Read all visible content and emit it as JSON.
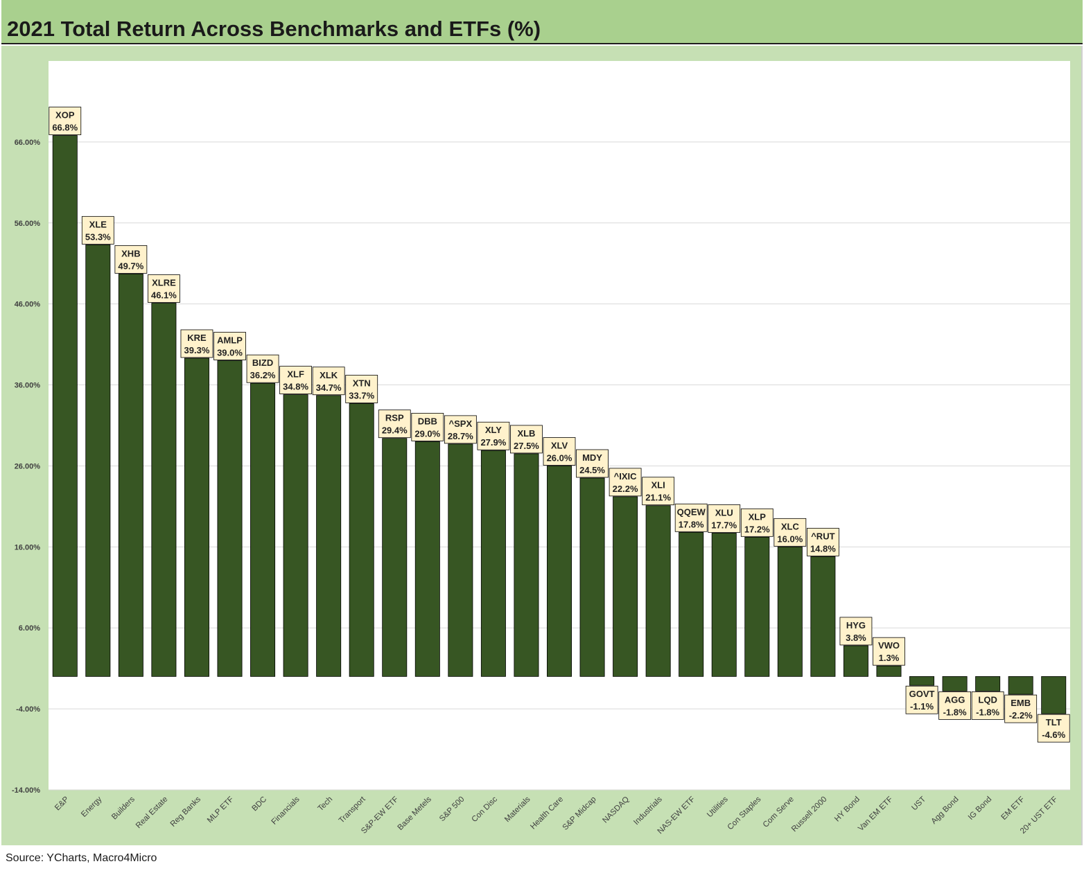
{
  "header": {
    "title": "2021 Total Return Across Benchmarks and ETFs (%)"
  },
  "footer": {
    "source": "Source: YCharts, Macro4Micro"
  },
  "colors": {
    "bar": "#375623",
    "frame": "#c6e0b4",
    "title_bar": "#a9d08e",
    "label_box": "#fff2cc"
  },
  "chart_data": {
    "type": "bar",
    "title": "2021 Total Return Across Benchmarks and ETFs (%)",
    "xlabel": "",
    "ylabel": "",
    "ylim": [
      -14,
      76
    ],
    "yticks": [
      "-14.00%",
      "-4.00%",
      "6.00%",
      "16.00%",
      "26.00%",
      "36.00%",
      "46.00%",
      "56.00%",
      "66.00%"
    ],
    "ytick_values": [
      -14,
      -4,
      6,
      16,
      26,
      36,
      46,
      56,
      66
    ],
    "grid": true,
    "legend": "none",
    "categories": [
      "E&P",
      "Energy",
      "Builders",
      "Real Estate",
      "Reg Banks",
      "MLP ETF",
      "BDC",
      "Financials",
      "Tech",
      "Transport",
      "S&P-EW ETF",
      "Base Metels",
      "S&P 500",
      "Con Disc",
      "Materials",
      "Health Care",
      "S&P Midcap",
      "NASDAQ",
      "Industrials",
      "NAS-EW ETF",
      "Utilities",
      "Con Staples",
      "Com Serve",
      "Russell 2000",
      "HY Bond",
      "Van EM ETF",
      "UST",
      "Agg Bond",
      "IG Bond",
      "EM ETF",
      "20+ UST ETF"
    ],
    "tickers": [
      "XOP",
      "XLE",
      "XHB",
      "XLRE",
      "KRE",
      "AMLP",
      "BIZD",
      "XLF",
      "XLK",
      "XTN",
      "RSP",
      "DBB",
      "^SPX",
      "XLY",
      "XLB",
      "XLV",
      "MDY",
      "^IXIC",
      "XLI",
      "QQEW",
      "XLU",
      "XLP",
      "XLC",
      "^RUT",
      "HYG",
      "VWO",
      "GOVT",
      "AGG",
      "LQD",
      "EMB",
      "TLT"
    ],
    "values": [
      66.8,
      53.3,
      49.7,
      46.1,
      39.3,
      39.0,
      36.2,
      34.8,
      34.7,
      33.7,
      29.4,
      29.0,
      28.7,
      27.9,
      27.5,
      26.0,
      24.5,
      22.2,
      21.1,
      17.8,
      17.7,
      17.2,
      16.0,
      14.8,
      3.8,
      1.3,
      -1.1,
      -1.8,
      -1.8,
      -2.2,
      -4.6
    ],
    "value_labels": [
      "66.8%",
      "53.3%",
      "49.7%",
      "46.1%",
      "39.3%",
      "39.0%",
      "36.2%",
      "34.8%",
      "34.7%",
      "33.7%",
      "29.4%",
      "29.0%",
      "28.7%",
      "27.9%",
      "27.5%",
      "26.0%",
      "24.5%",
      "22.2%",
      "21.1%",
      "17.8%",
      "17.7%",
      "17.2%",
      "16.0%",
      "14.8%",
      "3.8%",
      "1.3%",
      "-1.1%",
      "-1.8%",
      "-1.8%",
      "-2.2%",
      "-4.6%"
    ]
  }
}
